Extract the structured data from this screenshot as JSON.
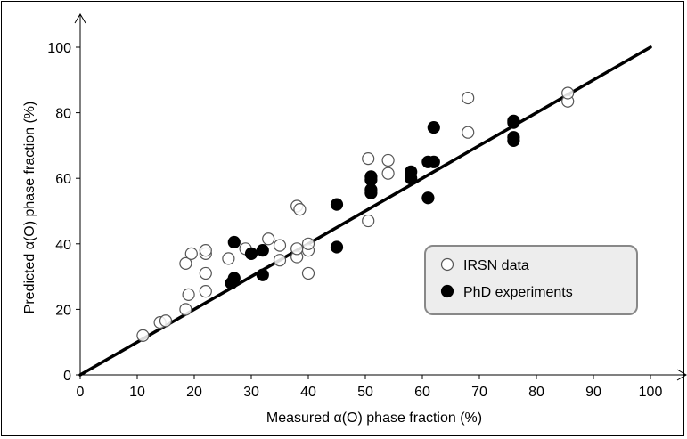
{
  "chart_data": {
    "type": "scatter",
    "xlabel": "Measured α(O) phase fraction (%)",
    "ylabel": "Predicted α(O) phase fraction (%)",
    "xlim": [
      0,
      100
    ],
    "ylim": [
      0,
      100
    ],
    "x_ticks": [
      "0",
      "10",
      "20",
      "30",
      "40",
      "50",
      "60",
      "70",
      "80",
      "90",
      "100"
    ],
    "y_ticks": [
      "0",
      "20",
      "40",
      "60",
      "80",
      "100"
    ],
    "grid": false,
    "legend_position": "right",
    "line": {
      "label": "y = x",
      "from": [
        0,
        0
      ],
      "to": [
        100,
        100
      ]
    },
    "series": [
      {
        "name": "IRSN data",
        "marker": "open-circle",
        "points": [
          [
            11,
            12
          ],
          [
            14,
            16
          ],
          [
            15,
            16.5
          ],
          [
            18.5,
            20
          ],
          [
            18.5,
            34
          ],
          [
            19,
            24.5
          ],
          [
            19.5,
            37
          ],
          [
            22,
            25.5
          ],
          [
            22,
            31
          ],
          [
            22,
            37
          ],
          [
            22,
            38
          ],
          [
            26,
            35.5
          ],
          [
            29,
            38.5
          ],
          [
            33,
            41.5
          ],
          [
            35,
            35
          ],
          [
            35,
            39.5
          ],
          [
            38,
            36
          ],
          [
            38,
            38.5
          ],
          [
            38,
            51.5
          ],
          [
            38.5,
            50.5
          ],
          [
            40,
            31
          ],
          [
            40,
            38
          ],
          [
            40,
            40
          ],
          [
            50.5,
            47
          ],
          [
            50.5,
            66
          ],
          [
            54,
            61.5
          ],
          [
            54,
            65.5
          ],
          [
            68,
            74
          ],
          [
            68,
            84.5
          ],
          [
            85.5,
            83.5
          ],
          [
            85.5,
            86
          ]
        ]
      },
      {
        "name": "PhD experiments",
        "marker": "filled-circle",
        "points": [
          [
            26.5,
            28
          ],
          [
            27,
            29.5
          ],
          [
            27,
            40.5
          ],
          [
            30,
            37
          ],
          [
            32,
            30.5
          ],
          [
            32,
            38
          ],
          [
            45,
            39
          ],
          [
            45,
            52
          ],
          [
            51,
            55.5
          ],
          [
            51,
            56.5
          ],
          [
            51,
            59.5
          ],
          [
            51,
            60.5
          ],
          [
            58,
            60
          ],
          [
            58,
            62
          ],
          [
            61,
            54
          ],
          [
            61,
            65
          ],
          [
            62,
            65
          ],
          [
            62,
            75.5
          ],
          [
            76,
            71.5
          ],
          [
            76,
            72.5
          ],
          [
            76,
            77
          ],
          [
            76,
            77.5
          ]
        ]
      }
    ]
  }
}
